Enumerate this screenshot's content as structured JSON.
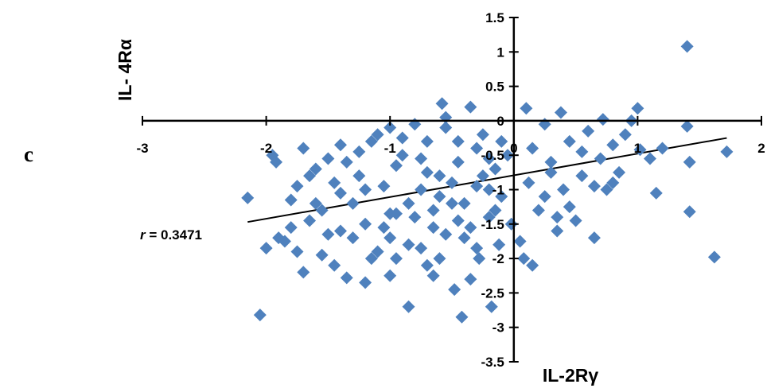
{
  "panel_label": "c",
  "chart_data": {
    "type": "scatter",
    "xlabel": "IL-2Rγ",
    "ylabel": "IL- 4Rα",
    "xlim": [
      -3,
      2
    ],
    "ylim": [
      -3.5,
      1.5
    ],
    "x_ticks": [
      "-3",
      "-2",
      "-1",
      "0",
      "1",
      "2"
    ],
    "y_ticks": [
      "1.5",
      "1",
      "0.5",
      "0",
      "-0.5",
      "-1",
      "-1.5",
      "-2",
      "-2.5",
      "-3",
      "-3.5"
    ],
    "grid": false,
    "marker": "diamond",
    "point_color": "#4f81bd",
    "trendline": {
      "x_start": -2.15,
      "x_end": 1.72,
      "y_start": -1.47,
      "y_end": -0.25
    },
    "annotation": {
      "prefix": "r",
      "text": " = 0.3471"
    },
    "points": [
      [
        -2.15,
        -1.12
      ],
      [
        -2.05,
        -2.82
      ],
      [
        -2.0,
        -1.85
      ],
      [
        -1.95,
        -0.5
      ],
      [
        -1.92,
        -0.6
      ],
      [
        -1.9,
        -1.7
      ],
      [
        -1.85,
        -1.75
      ],
      [
        -1.8,
        -1.55
      ],
      [
        -1.75,
        -1.9
      ],
      [
        -1.75,
        -0.95
      ],
      [
        -1.7,
        -2.2
      ],
      [
        -1.7,
        -0.4
      ],
      [
        -1.65,
        -1.45
      ],
      [
        -1.6,
        -0.7
      ],
      [
        -1.55,
        -1.3
      ],
      [
        -1.5,
        -0.55
      ],
      [
        -1.5,
        -1.65
      ],
      [
        -1.45,
        -2.1
      ],
      [
        -1.4,
        -0.35
      ],
      [
        -1.4,
        -1.05
      ],
      [
        -1.35,
        -2.28
      ],
      [
        -1.3,
        -1.2
      ],
      [
        -1.25,
        -0.8
      ],
      [
        -1.2,
        -2.35
      ],
      [
        -1.2,
        -1.5
      ],
      [
        -1.15,
        -0.3
      ],
      [
        -1.1,
        -1.9
      ],
      [
        -1.05,
        -0.95
      ],
      [
        -1.0,
        -2.25
      ],
      [
        -1.0,
        -0.1
      ],
      [
        -0.95,
        -1.35
      ],
      [
        -0.9,
        -0.5
      ],
      [
        -0.85,
        -1.8
      ],
      [
        -0.8,
        -0.05
      ],
      [
        -0.75,
        -1.0
      ],
      [
        -0.7,
        -2.1
      ],
      [
        -0.7,
        -0.3
      ],
      [
        -0.65,
        -1.55
      ],
      [
        -0.6,
        -0.8
      ],
      [
        -0.6,
        -2.0
      ],
      [
        -0.55,
        -0.1
      ],
      [
        -0.5,
        -1.2
      ],
      [
        -0.48,
        -2.45
      ],
      [
        -0.45,
        -0.6
      ],
      [
        -0.42,
        -2.85
      ],
      [
        -0.4,
        -1.7
      ],
      [
        -0.35,
        -2.3
      ],
      [
        -0.3,
        -0.95
      ],
      [
        -0.28,
        -2.0
      ],
      [
        -0.25,
        -0.2
      ],
      [
        -0.2,
        -1.4
      ],
      [
        -0.18,
        -2.7
      ],
      [
        -0.15,
        -0.7
      ],
      [
        -0.12,
        -1.8
      ],
      [
        -0.1,
        -0.3
      ],
      [
        -0.1,
        -1.1
      ],
      [
        -0.05,
        -0.5
      ],
      [
        -0.02,
        -1.5
      ],
      [
        0.05,
        -1.75
      ],
      [
        0.08,
        -2.0
      ],
      [
        0.1,
        0.18
      ],
      [
        0.12,
        -0.9
      ],
      [
        0.15,
        -2.1
      ],
      [
        0.2,
        -1.3
      ],
      [
        0.25,
        -0.05
      ],
      [
        0.3,
        -0.6
      ],
      [
        0.35,
        -1.6
      ],
      [
        0.38,
        0.12
      ],
      [
        0.4,
        -1.0
      ],
      [
        0.45,
        -0.3
      ],
      [
        0.5,
        -1.45
      ],
      [
        0.55,
        -0.8
      ],
      [
        0.6,
        -0.15
      ],
      [
        0.65,
        -1.7
      ],
      [
        0.7,
        -0.55
      ],
      [
        0.72,
        0.02
      ],
      [
        0.75,
        -1.0
      ],
      [
        0.8,
        -0.35
      ],
      [
        0.85,
        -0.75
      ],
      [
        0.9,
        -0.2
      ],
      [
        0.95,
        0.0
      ],
      [
        1.0,
        0.18
      ],
      [
        1.02,
        -0.42
      ],
      [
        1.1,
        -0.55
      ],
      [
        1.15,
        -1.05
      ],
      [
        1.2,
        -0.4
      ],
      [
        1.4,
        1.08
      ],
      [
        1.4,
        -0.08
      ],
      [
        1.42,
        -0.6
      ],
      [
        1.42,
        -1.32
      ],
      [
        1.62,
        -1.98
      ],
      [
        1.72,
        -0.45
      ],
      [
        -0.58,
        0.25
      ],
      [
        -0.55,
        0.05
      ],
      [
        -0.35,
        0.2
      ],
      [
        -1.6,
        -1.2
      ],
      [
        -1.3,
        -1.7
      ],
      [
        -1.05,
        -1.55
      ],
      [
        -0.85,
        -1.2
      ],
      [
        -0.65,
        -1.3
      ],
      [
        -0.45,
        -1.45
      ],
      [
        -0.25,
        -0.8
      ],
      [
        -1.45,
        -0.9
      ],
      [
        -1.25,
        -0.45
      ],
      [
        -0.95,
        -0.65
      ],
      [
        -0.75,
        -0.55
      ],
      [
        -0.5,
        -0.9
      ],
      [
        -0.3,
        -0.4
      ],
      [
        -1.2,
        -1.0
      ],
      [
        -1.0,
        -1.7
      ],
      [
        -0.8,
        -1.4
      ],
      [
        -0.6,
        -1.1
      ],
      [
        -0.4,
        -1.2
      ],
      [
        -0.2,
        -1.0
      ],
      [
        -1.55,
        -1.95
      ],
      [
        -1.35,
        -0.6
      ],
      [
        -1.15,
        -2.0
      ],
      [
        -0.95,
        -2.0
      ],
      [
        -0.75,
        -1.85
      ],
      [
        -0.55,
        -1.65
      ],
      [
        -0.35,
        -1.55
      ],
      [
        -0.15,
        -1.3
      ],
      [
        0.15,
        -0.4
      ],
      [
        0.25,
        -1.1
      ],
      [
        0.45,
        -1.25
      ],
      [
        0.55,
        -0.45
      ],
      [
        0.65,
        -0.95
      ],
      [
        0.8,
        -0.9
      ],
      [
        -1.8,
        -1.15
      ],
      [
        -1.65,
        -0.8
      ],
      [
        -1.1,
        -0.2
      ],
      [
        -0.9,
        -0.25
      ],
      [
        -0.7,
        -0.75
      ],
      [
        -0.45,
        -0.3
      ],
      [
        -0.2,
        -0.55
      ],
      [
        -1.4,
        -1.6
      ],
      [
        -1.0,
        -1.35
      ],
      [
        -0.65,
        -2.25
      ],
      [
        -0.85,
        -2.7
      ],
      [
        -0.3,
        -1.85
      ],
      [
        0.35,
        -1.4
      ],
      [
        0.3,
        -0.75
      ]
    ]
  }
}
